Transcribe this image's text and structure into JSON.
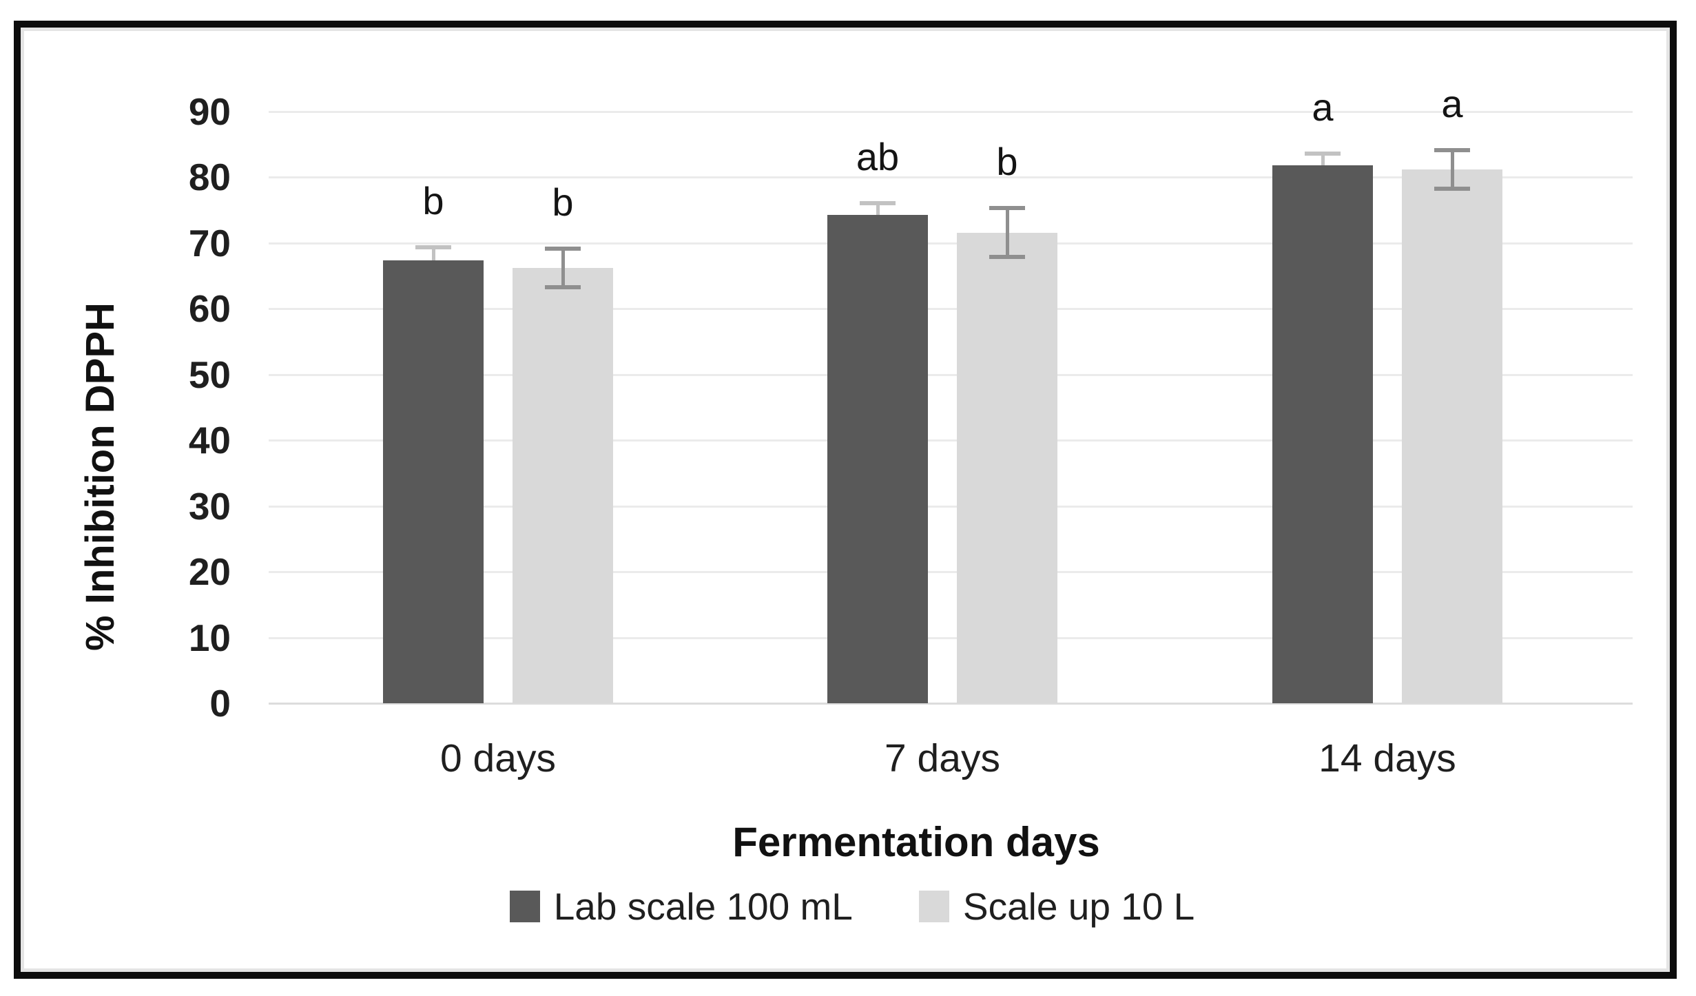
{
  "chart_data": {
    "type": "bar",
    "title": "",
    "xlabel": "Fermentation days",
    "ylabel": "% Inhibition DPPH",
    "categories": [
      "0 days",
      "7 days",
      "14 days"
    ],
    "series": [
      {
        "name": "Lab scale 100 mL",
        "color": "#595959",
        "error_color": "#c2c2c2",
        "values": [
          67.4,
          74.3,
          81.8
        ],
        "errors": [
          2.0,
          1.8,
          1.8
        ],
        "sig_letters": [
          "b",
          "ab",
          "a"
        ]
      },
      {
        "name": "Scale up 10 L",
        "color": "#d9d9d9",
        "error_color": "#8f8f8f",
        "values": [
          66.2,
          71.6,
          81.2
        ],
        "errors": [
          2.9,
          3.7,
          2.9
        ],
        "sig_letters": [
          "b",
          "b",
          "a"
        ]
      }
    ],
    "ylim": [
      0,
      90
    ],
    "yticks": [
      0,
      10,
      20,
      30,
      40,
      50,
      60,
      70,
      80,
      90
    ],
    "grid": true,
    "gridline_color": "#ebebeb",
    "zeroline_color": "#dcdcdc",
    "legend_position": "bottom-center",
    "text_color": "#1f1f1f"
  }
}
